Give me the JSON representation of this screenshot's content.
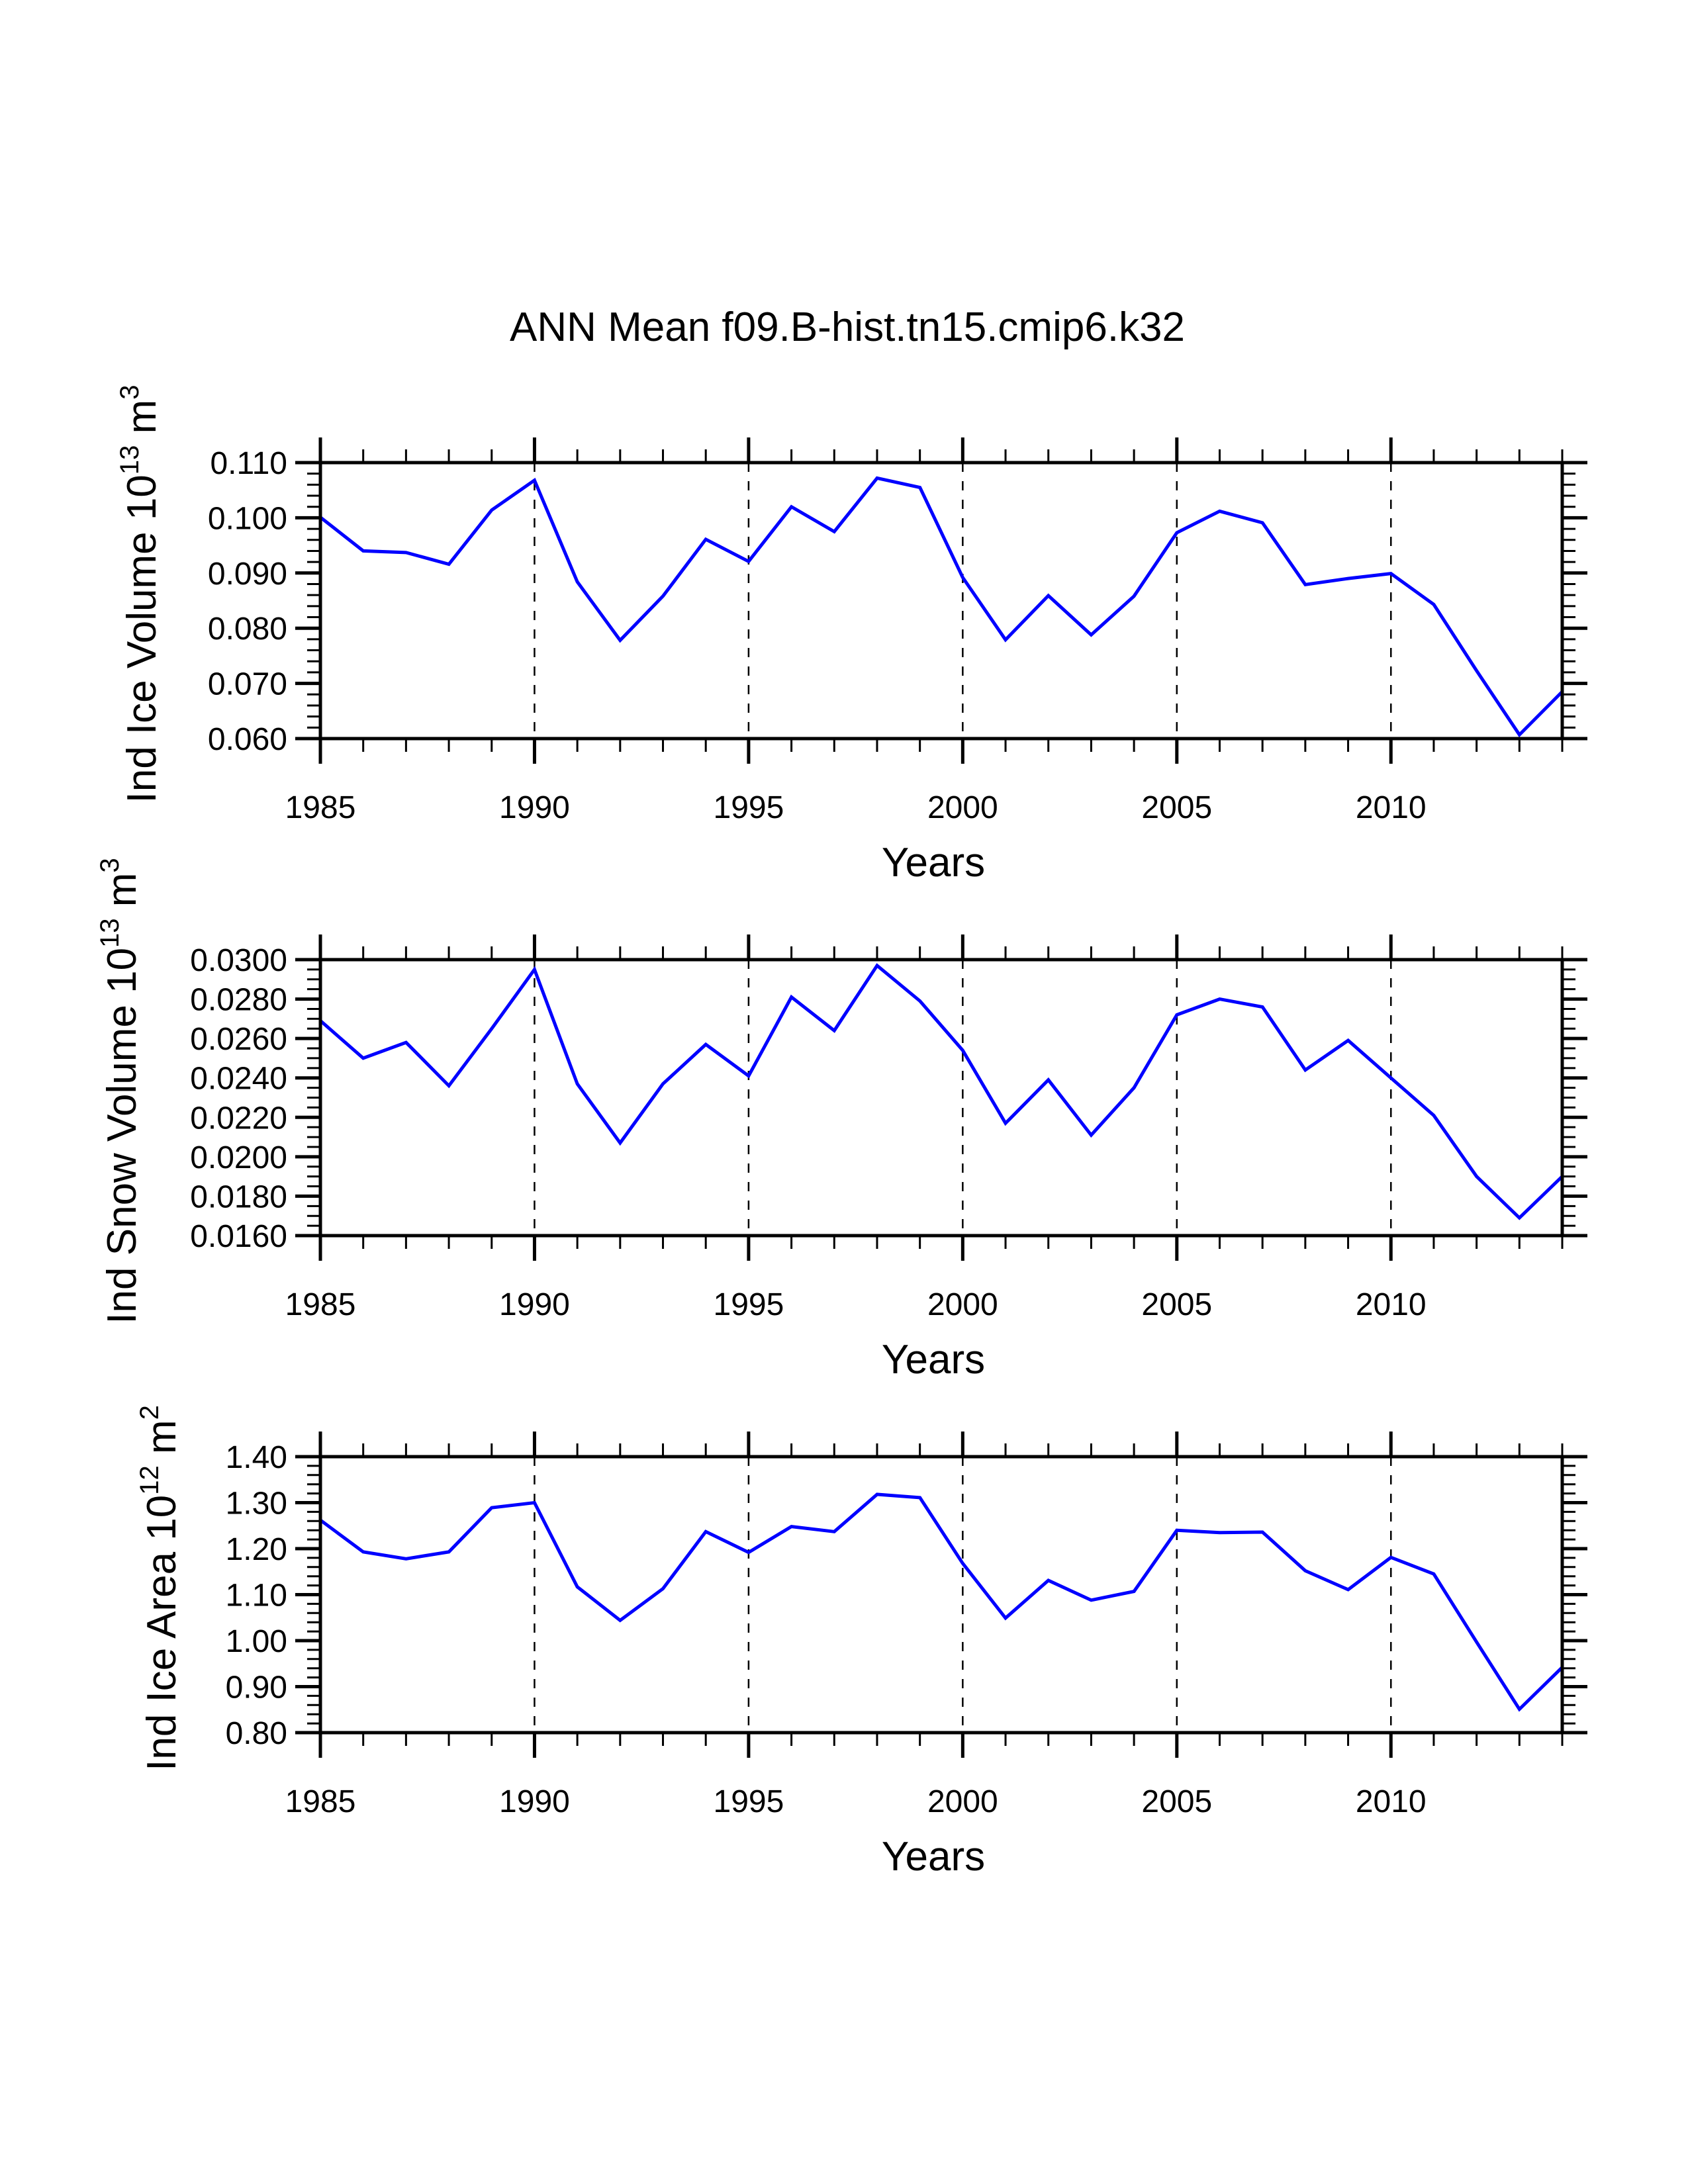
{
  "chart_data": [
    {
      "type": "line",
      "title": "ANN Mean f09.B-hist.tn15.cmip6.k32",
      "ylabel": "Ind Ice Volume 10",
      "ylabel_exp": "13",
      "ylabel_unit": " m",
      "ylabel_unit_exp": "3",
      "xlabel": "Years",
      "xlim": [
        1985,
        2014
      ],
      "ylim": [
        0.06,
        0.11
      ],
      "yticks": [
        0.06,
        0.07,
        0.08,
        0.09,
        0.1,
        0.11
      ],
      "ytick_labels": [
        "0.060",
        "0.070",
        "0.080",
        "0.090",
        "0.100",
        "0.110"
      ],
      "yminor_step": 0.002,
      "xticks": [
        1985,
        1990,
        1995,
        2000,
        2005,
        2010
      ],
      "xtick_labels": [
        "1985",
        "1990",
        "1995",
        "2000",
        "2005",
        "2010"
      ],
      "grid": "dashed vertical at labeled years",
      "series": [
        {
          "name": "Ind Ice Volume",
          "color": "#0000ff",
          "x": [
            1985,
            1986,
            1987,
            1988,
            1989,
            1990,
            1991,
            1992,
            1993,
            1994,
            1995,
            1996,
            1997,
            1998,
            1999,
            2000,
            2001,
            2002,
            2003,
            2004,
            2005,
            2006,
            2007,
            2008,
            2009,
            2010,
            2011,
            2012,
            2013,
            2014
          ],
          "values": [
            0.1001,
            0.094,
            0.0937,
            0.0916,
            0.1014,
            0.1068,
            0.0884,
            0.0778,
            0.0858,
            0.0961,
            0.0921,
            0.102,
            0.0975,
            0.1072,
            0.1055,
            0.0892,
            0.0779,
            0.0859,
            0.0788,
            0.0858,
            0.0973,
            0.1012,
            0.0991,
            0.0879,
            0.089,
            0.0899,
            0.0843,
            0.0723,
            0.0607,
            0.0685
          ]
        }
      ]
    },
    {
      "type": "line",
      "ylabel": "Ind Snow Volume 10",
      "ylabel_exp": "13",
      "ylabel_unit": " m",
      "ylabel_unit_exp": "3",
      "xlabel": "Years",
      "xlim": [
        1985,
        2014
      ],
      "ylim": [
        0.016,
        0.03
      ],
      "yticks": [
        0.016,
        0.018,
        0.02,
        0.022,
        0.024,
        0.026,
        0.028,
        0.03
      ],
      "ytick_labels": [
        "0.0160",
        "0.0180",
        "0.0200",
        "0.0220",
        "0.0240",
        "0.0260",
        "0.0280",
        "0.0300"
      ],
      "yminor_step": 0.0005,
      "xticks": [
        1985,
        1990,
        1995,
        2000,
        2005,
        2010
      ],
      "xtick_labels": [
        "1985",
        "1990",
        "1995",
        "2000",
        "2005",
        "2010"
      ],
      "grid": "dashed vertical at labeled years",
      "series": [
        {
          "name": "Ind Snow Volume",
          "color": "#0000ff",
          "x": [
            1985,
            1986,
            1987,
            1988,
            1989,
            1990,
            1991,
            1992,
            1993,
            1994,
            1995,
            1996,
            1997,
            1998,
            1999,
            2000,
            2001,
            2002,
            2003,
            2004,
            2005,
            2006,
            2007,
            2008,
            2009,
            2010,
            2011,
            2012,
            2013,
            2014
          ],
          "values": [
            0.0269,
            0.025,
            0.0258,
            0.0236,
            0.0265,
            0.0295,
            0.0237,
            0.0207,
            0.0237,
            0.0257,
            0.0241,
            0.0281,
            0.0264,
            0.0297,
            0.0279,
            0.0254,
            0.0217,
            0.0239,
            0.0211,
            0.0235,
            0.0272,
            0.028,
            0.0276,
            0.0244,
            0.0259,
            0.024,
            0.0221,
            0.019,
            0.0169,
            0.019
          ]
        }
      ]
    },
    {
      "type": "line",
      "ylabel": "Ind Ice Area 10",
      "ylabel_exp": "12",
      "ylabel_unit": " m",
      "ylabel_unit_exp": "2",
      "xlabel": "Years",
      "xlim": [
        1985,
        2014
      ],
      "ylim": [
        0.8,
        1.4
      ],
      "yticks": [
        0.8,
        0.9,
        1.0,
        1.1,
        1.2,
        1.3,
        1.4
      ],
      "ytick_labels": [
        "0.80",
        "0.90",
        "1.00",
        "1.10",
        "1.20",
        "1.30",
        "1.40"
      ],
      "yminor_step": 0.02,
      "xticks": [
        1985,
        1990,
        1995,
        2000,
        2005,
        2010
      ],
      "xtick_labels": [
        "1985",
        "1990",
        "1995",
        "2000",
        "2005",
        "2010"
      ],
      "grid": "dashed vertical at labeled years",
      "series": [
        {
          "name": "Ind Ice Area",
          "color": "#0000ff",
          "x": [
            1985,
            1986,
            1987,
            1988,
            1989,
            1990,
            1991,
            1992,
            1993,
            1994,
            1995,
            1996,
            1997,
            1998,
            1999,
            2000,
            2001,
            2002,
            2003,
            2004,
            2005,
            2006,
            2007,
            2008,
            2009,
            2010,
            2011,
            2012,
            2013,
            2014
          ],
          "values": [
            1.262,
            1.193,
            1.178,
            1.193,
            1.289,
            1.3,
            1.117,
            1.044,
            1.113,
            1.237,
            1.192,
            1.248,
            1.237,
            1.318,
            1.311,
            1.168,
            1.049,
            1.131,
            1.088,
            1.107,
            1.24,
            1.235,
            1.236,
            1.152,
            1.111,
            1.181,
            1.145,
            0.997,
            0.851,
            0.942
          ]
        }
      ]
    }
  ]
}
